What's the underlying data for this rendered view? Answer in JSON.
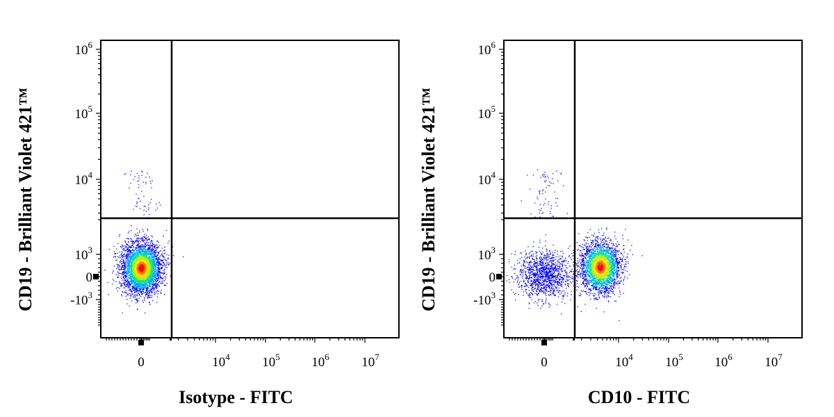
{
  "chart_data": [
    {
      "type": "scatter",
      "xlabel": "Isotype - FITC",
      "ylabel": "CD19 - Brilliant Violet 421™",
      "x_scale": "biexponential",
      "y_scale": "biexponential",
      "x_ticks": [
        {
          "value": "0",
          "base": "0",
          "exp": ""
        },
        {
          "value": "1e4",
          "base": "10",
          "exp": "4"
        },
        {
          "value": "1e5",
          "base": "10",
          "exp": "5"
        },
        {
          "value": "1e6",
          "base": "10",
          "exp": "6"
        },
        {
          "value": "1e7",
          "base": "10",
          "exp": "7"
        }
      ],
      "y_ticks": [
        {
          "value": "-1e3",
          "base": "-10",
          "exp": "3"
        },
        {
          "value": "0",
          "base": "0",
          "exp": ""
        },
        {
          "value": "1e3",
          "base": "10",
          "exp": "3"
        },
        {
          "value": "1e4",
          "base": "10",
          "exp": "4"
        },
        {
          "value": "1e5",
          "base": "10",
          "exp": "5"
        },
        {
          "value": "1e6",
          "base": "10",
          "exp": "6"
        }
      ],
      "gate": {
        "x": 1500,
        "y": 2500
      },
      "populations": [
        {
          "x_center": 0,
          "y_center": 400,
          "events": 4200,
          "density": "high"
        },
        {
          "x_center": 0,
          "y_center": 6000,
          "events": 60,
          "density": "low"
        }
      ]
    },
    {
      "type": "scatter",
      "xlabel": "CD10 - FITC",
      "ylabel": "CD19 - Brilliant Violet 421™",
      "x_scale": "biexponential",
      "y_scale": "biexponential",
      "x_ticks": [
        {
          "value": "0",
          "base": "0",
          "exp": ""
        },
        {
          "value": "1e4",
          "base": "10",
          "exp": "4"
        },
        {
          "value": "1e5",
          "base": "10",
          "exp": "5"
        },
        {
          "value": "1e6",
          "base": "10",
          "exp": "6"
        },
        {
          "value": "1e7",
          "base": "10",
          "exp": "7"
        }
      ],
      "y_ticks": [
        {
          "value": "-1e3",
          "base": "-10",
          "exp": "3"
        },
        {
          "value": "0",
          "base": "0",
          "exp": ""
        },
        {
          "value": "1e3",
          "base": "10",
          "exp": "3"
        },
        {
          "value": "1e4",
          "base": "10",
          "exp": "4"
        },
        {
          "value": "1e5",
          "base": "10",
          "exp": "5"
        },
        {
          "value": "1e6",
          "base": "10",
          "exp": "6"
        }
      ],
      "gate": {
        "x": 1500,
        "y": 2500
      },
      "populations": [
        {
          "x_center": 0,
          "y_center": 100,
          "events": 1300,
          "density": "medium"
        },
        {
          "x_center": 4500,
          "y_center": 450,
          "events": 3000,
          "density": "high"
        },
        {
          "x_center": 0,
          "y_center": 6000,
          "events": 70,
          "density": "low"
        }
      ]
    }
  ],
  "colors": {
    "density_scale": [
      "#0000ff",
      "#00a0ff",
      "#00e0a0",
      "#b0f000",
      "#ffe000",
      "#ff7000",
      "#ff0000"
    ],
    "axis": "#000000"
  }
}
